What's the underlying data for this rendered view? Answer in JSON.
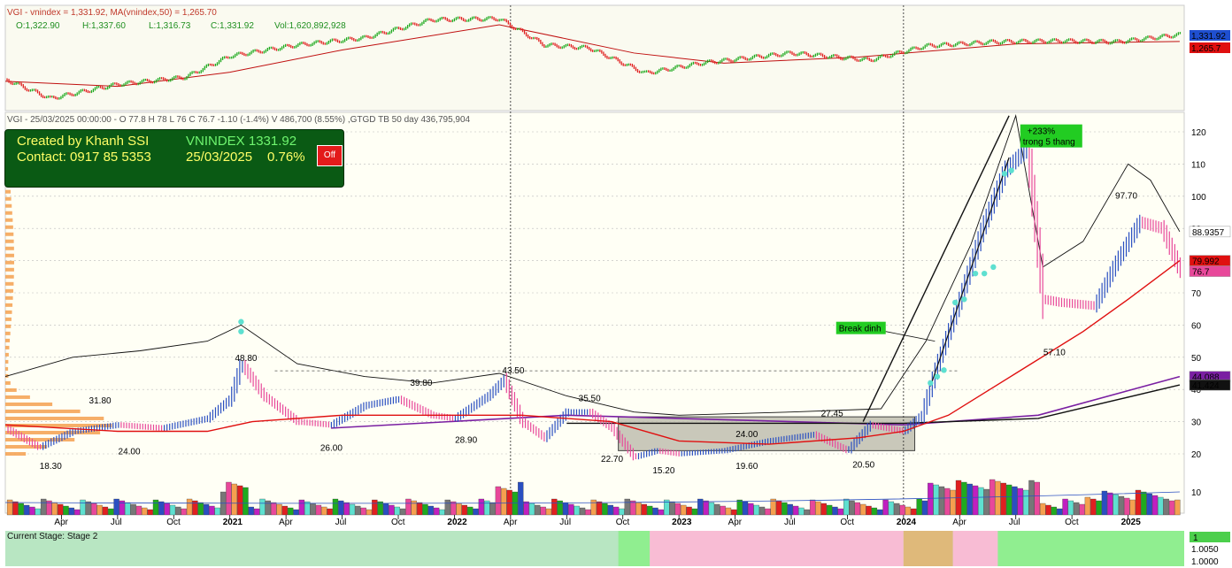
{
  "header_top": {
    "ticker_line": "VGI - vnindex = 1,331.92, MA(vnindex,50) = 1,265.70",
    "ohlc": {
      "o": "O:1,322.90",
      "h": "H:1,337.60",
      "l": "L:1,316.73",
      "c": "C:1,331.92",
      "vol": "Vol:1,620,892,928"
    },
    "label_index": "1,331.92",
    "label_ma": "1,265.7"
  },
  "header_main": {
    "text": "VGI - 25/03/2025 00:00:00 - O 77.8 H 78 L 76 C 76.7 -1.10 (-1.4%) V 486,700 (8.55%) ,GTGD TB 50 day 436,795,904"
  },
  "info_box": {
    "created": "Created by Khanh SSI",
    "contact": "Contact: 0917 85 5353",
    "index_name": "VNINDEX 1331.92",
    "date": "25/03/2025",
    "pct": "0.76%",
    "off_label": "Off"
  },
  "colors": {
    "up": "#2a4fc1",
    "down": "#e8489a",
    "ma": "#e01010",
    "ma_long": "#7a1fa2",
    "trend": "#111111",
    "box": "#c0bfb0"
  },
  "chart_data": {
    "type": "line",
    "x_labels": [
      "Apr",
      "Jul",
      "Oct",
      "2021",
      "Apr",
      "Jul",
      "Oct",
      "2022",
      "Apr",
      "Jul",
      "Oct",
      "2023",
      "Apr",
      "Jul",
      "Oct",
      "2024",
      "Apr",
      "Jul",
      "Oct",
      "2025"
    ],
    "y_ticks": [
      10,
      20,
      30,
      40,
      50,
      60,
      70,
      80,
      90,
      100,
      110,
      120
    ],
    "right_labels": [
      "88.9357",
      "79.992",
      "76.7",
      "44.088",
      "41.424"
    ],
    "annotations": [
      "48.80",
      "31.80",
      "24.00",
      "18.30",
      "26.00",
      "39.80",
      "28.90",
      "43.50",
      "35.50",
      "22.70",
      "15.20",
      "24.00",
      "19.60",
      "27.45",
      "20.50",
      "57.10",
      "97.70"
    ],
    "callouts": [
      "Break dinh",
      "+233%",
      "trong 5 thang"
    ],
    "price_series": [
      [
        2020.0,
        28
      ],
      [
        2020.15,
        22
      ],
      [
        2020.3,
        27
      ],
      [
        2020.5,
        29
      ],
      [
        2020.7,
        28
      ],
      [
        2020.9,
        31
      ],
      [
        2021.0,
        37
      ],
      [
        2021.05,
        48
      ],
      [
        2021.15,
        38
      ],
      [
        2021.3,
        30
      ],
      [
        2021.45,
        29
      ],
      [
        2021.6,
        35
      ],
      [
        2021.75,
        37
      ],
      [
        2021.9,
        32
      ],
      [
        2022.0,
        31
      ],
      [
        2022.15,
        38
      ],
      [
        2022.22,
        43
      ],
      [
        2022.3,
        30
      ],
      [
        2022.4,
        25
      ],
      [
        2022.5,
        33
      ],
      [
        2022.6,
        33
      ],
      [
        2022.7,
        28
      ],
      [
        2022.8,
        19
      ],
      [
        2022.9,
        21
      ],
      [
        2023.0,
        20
      ],
      [
        2023.2,
        21
      ],
      [
        2023.4,
        24
      ],
      [
        2023.6,
        26
      ],
      [
        2023.75,
        21
      ],
      [
        2023.85,
        29
      ],
      [
        2024.0,
        27
      ],
      [
        2024.08,
        32
      ],
      [
        2024.15,
        48
      ],
      [
        2024.25,
        68
      ],
      [
        2024.35,
        90
      ],
      [
        2024.45,
        108
      ],
      [
        2024.55,
        115
      ],
      [
        2024.62,
        68
      ],
      [
        2024.7,
        67
      ],
      [
        2024.85,
        66
      ],
      [
        2024.95,
        80
      ],
      [
        2025.05,
        92
      ],
      [
        2025.15,
        90
      ],
      [
        2025.23,
        77
      ]
    ],
    "ma_series": [
      [
        2020.0,
        29
      ],
      [
        2020.5,
        27
      ],
      [
        2020.9,
        27
      ],
      [
        2021.1,
        30
      ],
      [
        2021.5,
        32
      ],
      [
        2021.9,
        32
      ],
      [
        2022.3,
        32
      ],
      [
        2022.7,
        30
      ],
      [
        2023.0,
        24
      ],
      [
        2023.4,
        23
      ],
      [
        2023.8,
        25
      ],
      [
        2024.0,
        27
      ],
      [
        2024.2,
        32
      ],
      [
        2024.5,
        45
      ],
      [
        2024.8,
        58
      ],
      [
        2025.0,
        68
      ],
      [
        2025.23,
        80
      ]
    ],
    "gtgd_series": [
      [
        2020.0,
        44
      ],
      [
        2020.3,
        50
      ],
      [
        2020.6,
        52
      ],
      [
        2020.9,
        55
      ],
      [
        2021.05,
        60
      ],
      [
        2021.3,
        48
      ],
      [
        2021.6,
        44
      ],
      [
        2021.9,
        42
      ],
      [
        2022.2,
        45
      ],
      [
        2022.5,
        38
      ],
      [
        2022.8,
        33
      ],
      [
        2023.0,
        32
      ],
      [
        2023.5,
        33
      ],
      [
        2023.9,
        34
      ],
      [
        2024.1,
        55
      ],
      [
        2024.3,
        85
      ],
      [
        2024.5,
        125
      ],
      [
        2024.62,
        78
      ],
      [
        2024.8,
        86
      ],
      [
        2025.0,
        110
      ],
      [
        2025.1,
        105
      ],
      [
        2025.23,
        89
      ]
    ],
    "vnindex_series": [
      [
        2020.0,
        890
      ],
      [
        2020.2,
        700
      ],
      [
        2020.5,
        840
      ],
      [
        2020.8,
        910
      ],
      [
        2021.0,
        1120
      ],
      [
        2021.3,
        1230
      ],
      [
        2021.6,
        1300
      ],
      [
        2021.9,
        1480
      ],
      [
        2022.2,
        1490
      ],
      [
        2022.4,
        1230
      ],
      [
        2022.6,
        1200
      ],
      [
        2022.85,
        950
      ],
      [
        2023.1,
        1050
      ],
      [
        2023.5,
        1150
      ],
      [
        2023.85,
        1080
      ],
      [
        2024.1,
        1220
      ],
      [
        2024.4,
        1260
      ],
      [
        2024.7,
        1270
      ],
      [
        2024.95,
        1260
      ],
      [
        2025.23,
        1331.92
      ]
    ],
    "stage": "Current Stage: Stage 2",
    "stage_ticks": [
      "1",
      "1.0050",
      "1.0000"
    ]
  }
}
